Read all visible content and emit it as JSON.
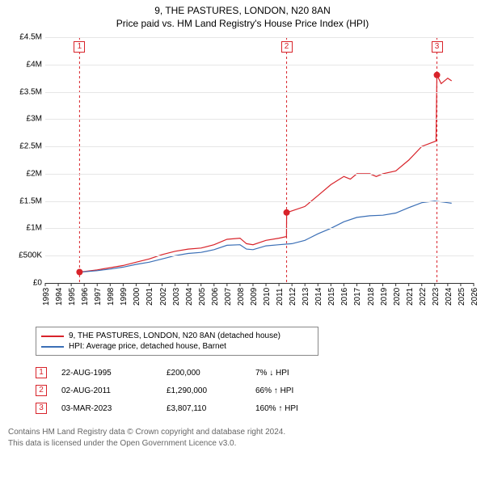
{
  "title": "9, THE PASTURES, LONDON, N20 8AN",
  "subtitle": "Price paid vs. HM Land Registry's House Price Index (HPI)",
  "chart": {
    "type": "line",
    "background_color": "#ffffff",
    "grid_color_major": "#e6e6e6",
    "grid_color_zero": "#333333",
    "xlim": [
      1993,
      2026
    ],
    "xtick_step": 1,
    "x_ticks": [
      1993,
      1994,
      1995,
      1996,
      1997,
      1998,
      1999,
      2000,
      2001,
      2002,
      2003,
      2004,
      2005,
      2006,
      2007,
      2008,
      2009,
      2010,
      2011,
      2012,
      2013,
      2014,
      2015,
      2016,
      2017,
      2018,
      2019,
      2020,
      2021,
      2022,
      2023,
      2024,
      2025,
      2026
    ],
    "ylim": [
      0,
      4500000
    ],
    "ytick_step": 500000,
    "y_ticks": [
      {
        "v": 0,
        "label": "£0"
      },
      {
        "v": 500000,
        "label": "£500K"
      },
      {
        "v": 1000000,
        "label": "£1M"
      },
      {
        "v": 1500000,
        "label": "£1.5M"
      },
      {
        "v": 2000000,
        "label": "£2M"
      },
      {
        "v": 2500000,
        "label": "£2.5M"
      },
      {
        "v": 3000000,
        "label": "£3M"
      },
      {
        "v": 3500000,
        "label": "£3.5M"
      },
      {
        "v": 4000000,
        "label": "£4M"
      },
      {
        "v": 4500000,
        "label": "£4.5M"
      }
    ],
    "label_fontsize": 10,
    "series": [
      {
        "id": "price_paid",
        "label": "9, THE PASTURES, LONDON, N20 8AN (detached house)",
        "color": "#d8232a",
        "line_width": 1.2,
        "data": [
          [
            1995.64,
            200000
          ],
          [
            1996,
            210000
          ],
          [
            1997,
            240000
          ],
          [
            1998,
            280000
          ],
          [
            1999,
            320000
          ],
          [
            2000,
            380000
          ],
          [
            2001,
            440000
          ],
          [
            2002,
            520000
          ],
          [
            2003,
            580000
          ],
          [
            2004,
            620000
          ],
          [
            2005,
            640000
          ],
          [
            2006,
            700000
          ],
          [
            2007,
            800000
          ],
          [
            2008,
            820000
          ],
          [
            2008.5,
            720000
          ],
          [
            2009,
            700000
          ],
          [
            2010,
            780000
          ],
          [
            2011,
            820000
          ],
          [
            2011.58,
            850000
          ],
          [
            2011.59,
            1290000
          ],
          [
            2012,
            1320000
          ],
          [
            2013,
            1400000
          ],
          [
            2014,
            1600000
          ],
          [
            2015,
            1800000
          ],
          [
            2016,
            1950000
          ],
          [
            2016.5,
            1900000
          ],
          [
            2017,
            2000000
          ],
          [
            2018,
            2000000
          ],
          [
            2018.5,
            1950000
          ],
          [
            2019,
            2000000
          ],
          [
            2020,
            2050000
          ],
          [
            2021,
            2250000
          ],
          [
            2022,
            2500000
          ],
          [
            2023.1,
            2600000
          ],
          [
            2023.17,
            3807110
          ],
          [
            2023.5,
            3650000
          ],
          [
            2024,
            3750000
          ],
          [
            2024.3,
            3700000
          ]
        ]
      },
      {
        "id": "hpi",
        "label": "HPI: Average price, detached house, Barnet",
        "color": "#3b6fb6",
        "line_width": 1.2,
        "data": [
          [
            1995.64,
            200000
          ],
          [
            1996,
            205000
          ],
          [
            1997,
            225000
          ],
          [
            1998,
            255000
          ],
          [
            1999,
            290000
          ],
          [
            2000,
            340000
          ],
          [
            2001,
            380000
          ],
          [
            2002,
            440000
          ],
          [
            2003,
            500000
          ],
          [
            2004,
            540000
          ],
          [
            2005,
            560000
          ],
          [
            2006,
            610000
          ],
          [
            2007,
            690000
          ],
          [
            2008,
            700000
          ],
          [
            2008.5,
            620000
          ],
          [
            2009,
            610000
          ],
          [
            2010,
            680000
          ],
          [
            2011,
            700000
          ],
          [
            2012,
            720000
          ],
          [
            2013,
            780000
          ],
          [
            2014,
            900000
          ],
          [
            2015,
            1000000
          ],
          [
            2016,
            1120000
          ],
          [
            2017,
            1200000
          ],
          [
            2018,
            1230000
          ],
          [
            2019,
            1240000
          ],
          [
            2020,
            1280000
          ],
          [
            2021,
            1380000
          ],
          [
            2022,
            1470000
          ],
          [
            2023,
            1500000
          ],
          [
            2024,
            1470000
          ],
          [
            2024.3,
            1460000
          ]
        ]
      }
    ],
    "transaction_markers": [
      {
        "n": "1",
        "x": 1995.64,
        "y": 200000,
        "box_y": 4320000
      },
      {
        "n": "2",
        "x": 2011.59,
        "y": 1290000,
        "box_y": 4320000
      },
      {
        "n": "3",
        "x": 2023.17,
        "y": 3807110,
        "box_y": 4320000
      }
    ],
    "marker_color": "#d8232a",
    "marker_dot_radius": 4
  },
  "legend": {
    "border_color": "#888888",
    "items": [
      {
        "color": "#d8232a",
        "label": "9, THE PASTURES, LONDON, N20 8AN (detached house)"
      },
      {
        "color": "#3b6fb6",
        "label": "HPI: Average price, detached house, Barnet"
      }
    ]
  },
  "transactions": {
    "box_color": "#d8232a",
    "rows": [
      {
        "n": "1",
        "date": "22-AUG-1995",
        "price": "£200,000",
        "pct": "7% ↓ HPI"
      },
      {
        "n": "2",
        "date": "02-AUG-2011",
        "price": "£1,290,000",
        "pct": "66% ↑ HPI"
      },
      {
        "n": "3",
        "date": "03-MAR-2023",
        "price": "£3,807,110",
        "pct": "160% ↑ HPI"
      }
    ]
  },
  "footer": {
    "line1": "Contains HM Land Registry data © Crown copyright and database right 2024.",
    "line2": "This data is licensed under the Open Government Licence v3.0.",
    "color": "#666666"
  }
}
